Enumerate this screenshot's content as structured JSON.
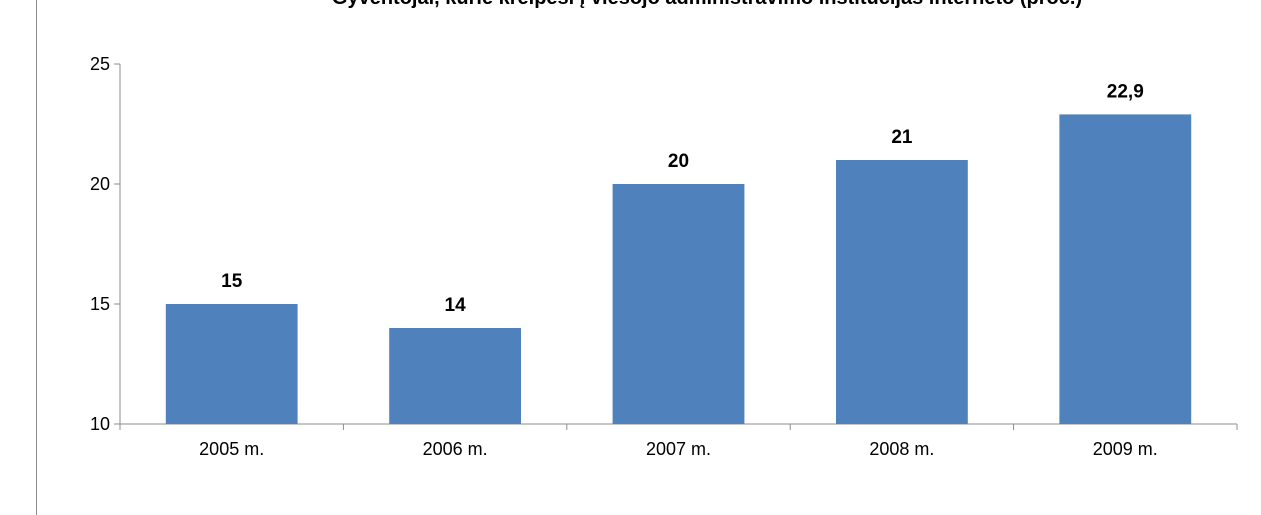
{
  "chart_data": {
    "type": "bar",
    "title": "Gyventojai, kurie kreipėsi į viešojo administravimo institucijas interneto (proc.)",
    "categories": [
      "2005 m.",
      "2006 m.",
      "2007 m.",
      "2008 m.",
      "2009 m."
    ],
    "values": [
      15,
      14,
      20,
      21,
      22.9
    ],
    "data_labels": [
      "15",
      "14",
      "20",
      "21",
      "22,9"
    ],
    "ylim": [
      10,
      25
    ],
    "yticks": [
      10,
      15,
      20,
      25
    ],
    "ytick_labels": [
      "10",
      "15",
      "20",
      "25"
    ],
    "xlabel": "",
    "ylabel": "",
    "grid": false,
    "legend": false,
    "bar_color": "#4f81bd"
  }
}
